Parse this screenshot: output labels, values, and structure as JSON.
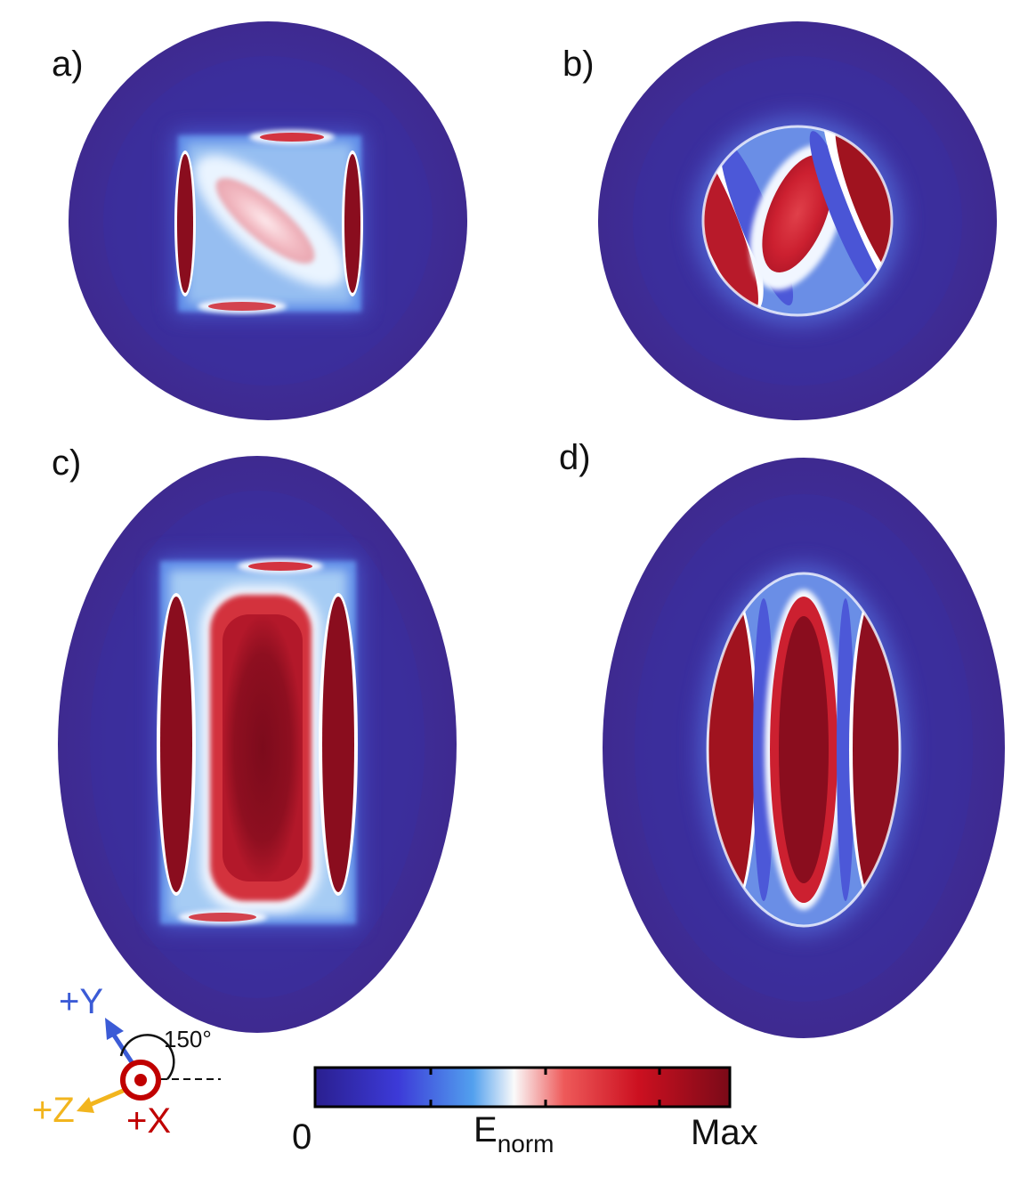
{
  "panels": [
    {
      "label": "a)",
      "shape": "circle",
      "resonator": "cube"
    },
    {
      "label": "b)",
      "shape": "circle",
      "resonator": "sphere"
    },
    {
      "label": "c)",
      "shape": "ellipse",
      "resonator": "cuboid"
    },
    {
      "label": "d)",
      "shape": "ellipse",
      "resonator": "spheroid"
    }
  ],
  "axes": {
    "y": {
      "label": "+Y",
      "color": "#3b5bd6"
    },
    "z": {
      "label": "+Z",
      "color": "#f2b51e"
    },
    "x": {
      "label": "+X",
      "color": "#c00000"
    },
    "angle_label": "150°"
  },
  "colorbar": {
    "min_label": "0",
    "max_label": "Max",
    "title_main": "E",
    "title_sub": "norm",
    "colors": [
      "#2a1f8f",
      "#3c3ad8",
      "#52a0ee",
      "#fafafa",
      "#ee5a5a",
      "#cc1020",
      "#7a0a18"
    ]
  },
  "colors": {
    "background": "#3f2a94",
    "inner": "#3a2c9c",
    "glow": "#4b63d8",
    "white": "#f4f8ff",
    "red": "#c61c28",
    "deep_red": "#7a0c1c",
    "pink": "#f2b6be"
  }
}
